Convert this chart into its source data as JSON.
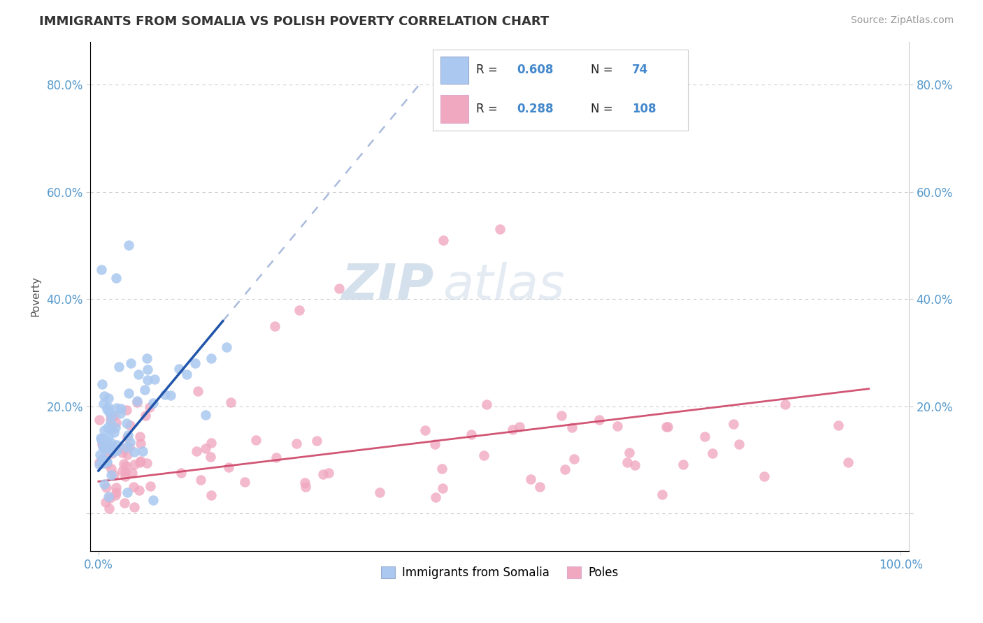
{
  "title": "IMMIGRANTS FROM SOMALIA VS POLISH POVERTY CORRELATION CHART",
  "source_text": "Source: ZipAtlas.com",
  "watermark_zip": "ZIP",
  "watermark_atlas": "atlas",
  "xlabel": "",
  "ylabel": "Poverty",
  "xlim": [
    -0.01,
    1.01
  ],
  "ylim": [
    -0.07,
    0.88
  ],
  "x_ticks": [
    0.0,
    1.0
  ],
  "x_tick_labels": [
    "0.0%",
    "100.0%"
  ],
  "y_ticks": [
    0.0,
    0.2,
    0.4,
    0.6,
    0.8
  ],
  "y_tick_labels": [
    "",
    "20.0%",
    "40.0%",
    "60.0%",
    "80.0%"
  ],
  "somalia_R": 0.608,
  "somalia_N": 74,
  "poles_R": 0.288,
  "poles_N": 108,
  "somalia_color": "#aac8f0",
  "somalia_line_color": "#2255aa",
  "somalia_dash_color": "#aabbdd",
  "poles_color": "#f0a8c0",
  "poles_line_color": "#cc4466",
  "legend_somalia_label": "Immigrants from Somalia",
  "legend_poles_label": "Poles",
  "background_color": "#ffffff",
  "grid_color": "#cccccc",
  "title_color": "#333333",
  "axis_label_color": "#5599cc",
  "legend_R_color": "#4488cc",
  "watermark_color_zip": "#c0d4e8",
  "watermark_color_atlas": "#d0dff0"
}
